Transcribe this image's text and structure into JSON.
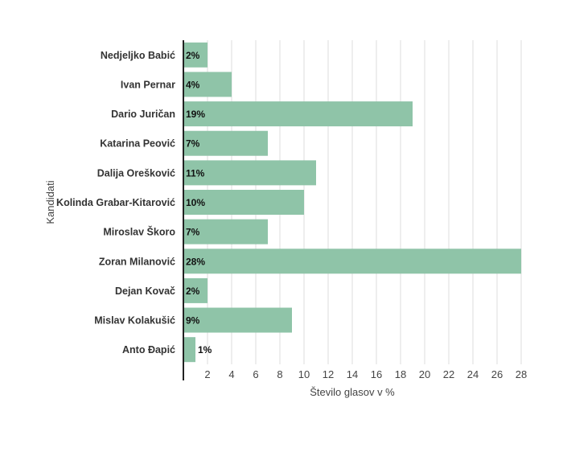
{
  "chart_data": {
    "type": "bar",
    "orientation": "horizontal",
    "categories": [
      "Nedjeljko Babić",
      "Ivan Pernar",
      "Dario Juričan",
      "Katarina Peović",
      "Dalija Orešković",
      "Kolinda Grabar-Kitarović",
      "Miroslav Škoro",
      "Zoran Milanović",
      "Dejan Kovač",
      "Mislav Kolakušić",
      "Anto Đapić"
    ],
    "values": [
      2,
      4,
      19,
      7,
      11,
      10,
      7,
      28,
      2,
      9,
      1
    ],
    "data_labels": [
      "2%",
      "4%",
      "19%",
      "7%",
      "11%",
      "10%",
      "7%",
      "28%",
      "2%",
      "9%",
      "1%"
    ],
    "xlabel": "Število glasov v %",
    "ylabel": "Kandidati",
    "xlim": [
      0,
      28
    ],
    "xticks": [
      2,
      4,
      6,
      8,
      10,
      12,
      14,
      16,
      18,
      20,
      22,
      24,
      26,
      28
    ],
    "grid": "vertical",
    "bar_color": "#8fc4a8",
    "axis_color": "#222222",
    "grid_color": "#dddddd"
  }
}
